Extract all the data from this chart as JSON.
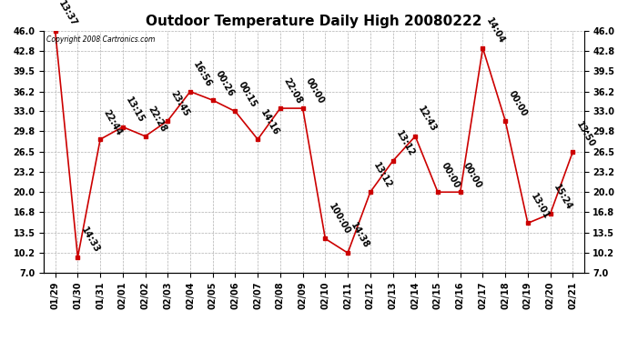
{
  "title": "Outdoor Temperature Daily High 20080222",
  "copyright_text": "Copyright 2008 Cartronics.com",
  "x_labels": [
    "01/29",
    "01/30",
    "01/31",
    "02/01",
    "02/02",
    "02/03",
    "02/04",
    "02/05",
    "02/06",
    "02/07",
    "02/08",
    "02/09",
    "02/10",
    "02/11",
    "02/12",
    "02/13",
    "02/14",
    "02/15",
    "02/16",
    "02/17",
    "02/18",
    "02/19",
    "02/20",
    "02/21"
  ],
  "y_values": [
    46.0,
    9.5,
    28.5,
    30.5,
    29.0,
    31.5,
    36.2,
    34.8,
    33.0,
    28.5,
    33.5,
    33.5,
    12.5,
    10.2,
    20.0,
    25.0,
    29.0,
    20.0,
    20.0,
    43.2,
    31.5,
    15.0,
    16.5,
    26.5
  ],
  "point_labels": [
    "13:37",
    "14:33",
    "22:44",
    "13:15",
    "22:28",
    "23:45",
    "16:56",
    "00:26",
    "00:15",
    "14:16",
    "22:08",
    "00:00",
    "100:00",
    "14:38",
    "13:12",
    "13:12",
    "12:43",
    "00:00",
    "00:00",
    "14:04",
    "00:00",
    "13:01",
    "15:24",
    "13:50"
  ],
  "line_color": "#cc0000",
  "marker_color": "#cc0000",
  "bg_color": "#ffffff",
  "grid_color": "#b0b0b0",
  "y_ticks": [
    7.0,
    10.2,
    13.5,
    16.8,
    20.0,
    23.2,
    26.5,
    29.8,
    33.0,
    36.2,
    39.5,
    42.8,
    46.0
  ],
  "y_min": 7.0,
  "y_max": 46.0,
  "label_fontsize": 7,
  "title_fontsize": 11
}
